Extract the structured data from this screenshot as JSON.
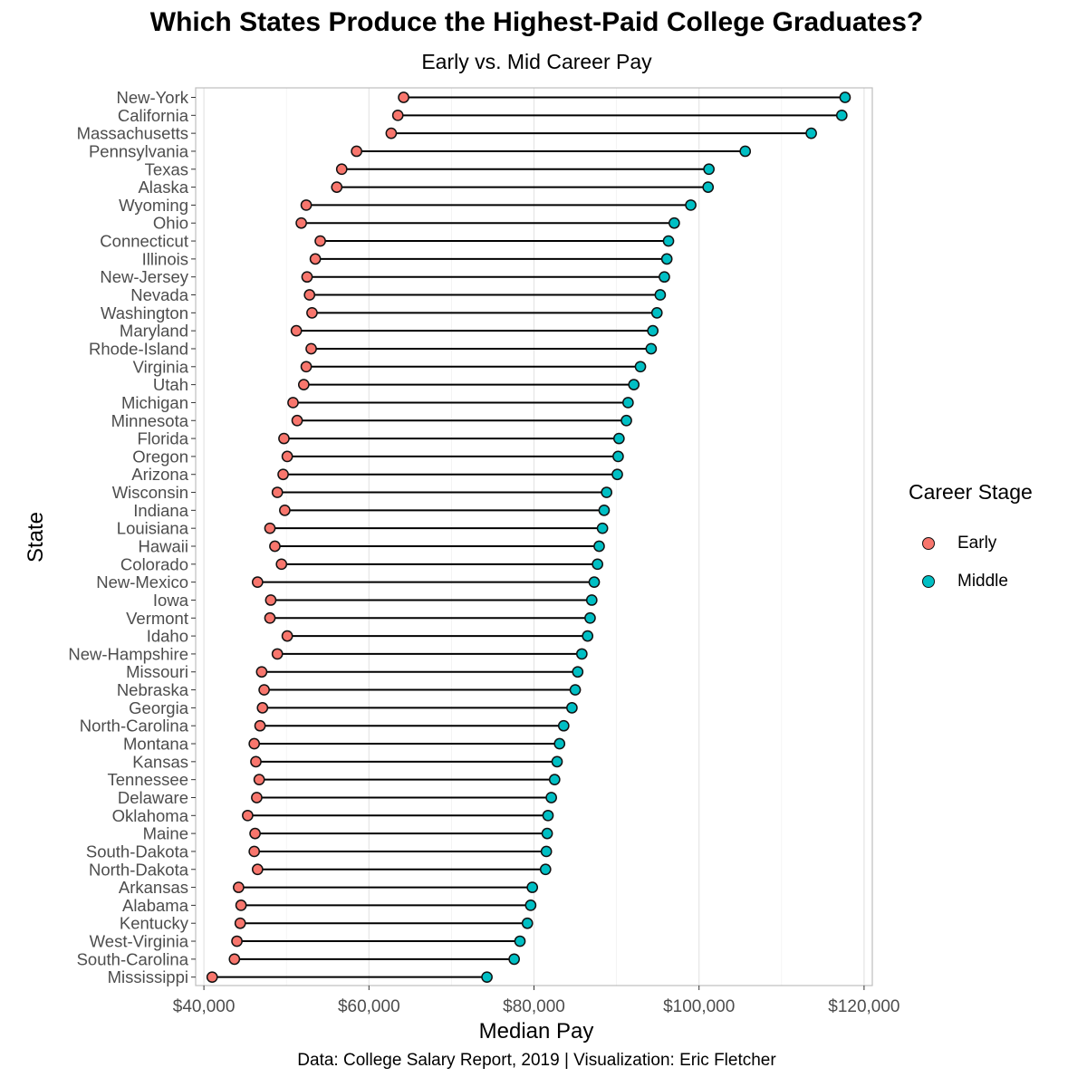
{
  "title": "Which States Produce the Highest-Paid College Graduates?",
  "subtitle": "Early vs. Mid Career Pay",
  "caption": "Data: College Salary Report, 2019 | Visualization: Eric Fletcher",
  "legend": {
    "title": "Career Stage",
    "items": [
      {
        "label": "Early",
        "color": "#f8766d"
      },
      {
        "label": "Middle",
        "color": "#00bfc4"
      }
    ]
  },
  "chart_data": {
    "type": "dumbbell",
    "xlabel": "Median Pay",
    "ylabel": "State",
    "xlim": [
      39000,
      121000
    ],
    "xticks": [
      40000,
      60000,
      80000,
      100000,
      120000
    ],
    "xtick_labels": [
      "$40,000",
      "$60,000",
      "$80,000",
      "$100,000",
      "$120,000"
    ],
    "grid": true,
    "legend_position": "right",
    "states": [
      "New-York",
      "California",
      "Massachusetts",
      "Pennsylvania",
      "Texas",
      "Alaska",
      "Wyoming",
      "Ohio",
      "Connecticut",
      "Illinois",
      "New-Jersey",
      "Nevada",
      "Washington",
      "Maryland",
      "Rhode-Island",
      "Virginia",
      "Utah",
      "Michigan",
      "Minnesota",
      "Florida",
      "Oregon",
      "Arizona",
      "Wisconsin",
      "Indiana",
      "Louisiana",
      "Hawaii",
      "Colorado",
      "New-Mexico",
      "Iowa",
      "Vermont",
      "Idaho",
      "New-Hampshire",
      "Missouri",
      "Nebraska",
      "Georgia",
      "North-Carolina",
      "Montana",
      "Kansas",
      "Tennessee",
      "Delaware",
      "Oklahoma",
      "Maine",
      "South-Dakota",
      "North-Dakota",
      "Arkansas",
      "Alabama",
      "Kentucky",
      "West-Virginia",
      "South-Carolina",
      "Mississippi"
    ],
    "series": [
      {
        "name": "Early",
        "values": [
          64200,
          63500,
          62700,
          58500,
          56700,
          56100,
          52400,
          51800,
          54100,
          53500,
          52500,
          52800,
          53100,
          51200,
          53000,
          52400,
          52100,
          50800,
          51300,
          49700,
          50100,
          49600,
          48900,
          49800,
          48000,
          48600,
          49400,
          46500,
          48100,
          48000,
          50100,
          48900,
          47000,
          47300,
          47100,
          46800,
          46100,
          46300,
          46700,
          46400,
          45300,
          46200,
          46100,
          46500,
          44200,
          44500,
          44400,
          44000,
          43700,
          41000
        ],
        "color": "#f8766d"
      },
      {
        "name": "Middle",
        "values": [
          117700,
          117300,
          113600,
          105600,
          101200,
          101100,
          99000,
          97000,
          96300,
          96100,
          95800,
          95300,
          94900,
          94400,
          94200,
          92900,
          92100,
          91400,
          91200,
          90300,
          90200,
          90100,
          88800,
          88500,
          88300,
          87900,
          87700,
          87300,
          87000,
          86800,
          86500,
          85800,
          85300,
          85000,
          84600,
          83600,
          83100,
          82800,
          82500,
          82100,
          81700,
          81600,
          81500,
          81400,
          79800,
          79600,
          79200,
          78300,
          77600,
          74300
        ],
        "color": "#00bfc4"
      }
    ]
  }
}
